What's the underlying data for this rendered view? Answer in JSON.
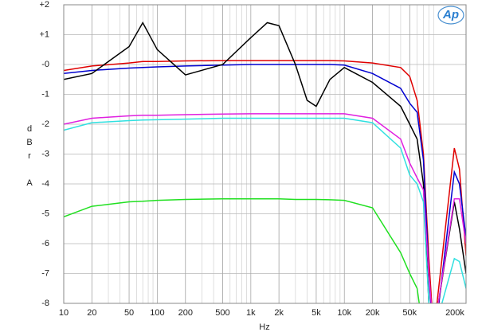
{
  "chart_data": {
    "type": "line",
    "xlabel": "Hz",
    "ylabel": "dBr A",
    "logo": "Ap",
    "xscale": "log",
    "grid": true,
    "x": [
      10,
      20,
      50,
      70,
      100,
      200,
      500,
      1000,
      1500,
      2000,
      3000,
      4000,
      5000,
      7000,
      10000,
      20000,
      40000,
      50000,
      60000,
      70000,
      80000,
      90000,
      150000,
      170000,
      200000
    ],
    "xlim": [
      10,
      200000
    ],
    "xticks": [
      10,
      20,
      50,
      100,
      200,
      500,
      {
        "value": 1000,
        "label": "1k"
      },
      {
        "value": 2000,
        "label": "2k"
      },
      {
        "value": 5000,
        "label": "5k"
      },
      {
        "value": 10000,
        "label": "10k"
      },
      {
        "value": 20000,
        "label": "20k"
      },
      {
        "value": 50000,
        "label": "50k"
      },
      {
        "value": 200000,
        "label": "200k"
      }
    ],
    "ylim": [
      -8,
      2
    ],
    "yticks": [
      {
        "value": 2,
        "label": "+2"
      },
      {
        "value": 1,
        "label": "+1"
      },
      {
        "value": 0,
        "label": "-0"
      },
      -1,
      -2,
      -3,
      -4,
      -5,
      -6,
      -7,
      -8
    ],
    "series": [
      {
        "color": "#e00000",
        "values": [
          -0.2,
          -0.05,
          0.05,
          0.1,
          0.1,
          0.12,
          0.13,
          0.13,
          0.13,
          0.13,
          0.13,
          0.13,
          0.13,
          0.13,
          0.12,
          0.05,
          -0.1,
          -0.4,
          -1.2,
          -3,
          -6.5,
          -9,
          -2.8,
          -3.5,
          -6.4
        ]
      },
      {
        "color": "#0000d0",
        "values": [
          -0.3,
          -0.2,
          -0.12,
          -0.1,
          -0.08,
          -0.05,
          -0.02,
          0,
          0,
          0,
          0,
          0,
          0,
          0,
          -0.02,
          -0.3,
          -0.8,
          -1.3,
          -1.6,
          -3.2,
          -7,
          -9.5,
          -3.6,
          -4,
          -5.8
        ]
      },
      {
        "color": "#000000",
        "values": [
          -0.5,
          -0.3,
          0.6,
          1.4,
          0.5,
          -0.35,
          0,
          0.9,
          1.4,
          1.3,
          0,
          -1.2,
          -1.4,
          -0.5,
          -0.1,
          -0.6,
          -1.4,
          -2,
          -2.5,
          -4,
          -8,
          -9,
          -4.6,
          -5.5,
          -7
        ]
      },
      {
        "color": "#e020e0",
        "values": [
          -2,
          -1.8,
          -1.72,
          -1.7,
          -1.7,
          -1.68,
          -1.66,
          -1.65,
          -1.65,
          -1.65,
          -1.65,
          -1.65,
          -1.65,
          -1.65,
          -1.65,
          -1.8,
          -2.5,
          -3.3,
          -3.8,
          -4.2,
          -7,
          -9,
          -4.5,
          -4.5,
          -6
        ]
      },
      {
        "color": "#30e0e0",
        "values": [
          -2.2,
          -1.95,
          -1.88,
          -1.86,
          -1.85,
          -1.83,
          -1.8,
          -1.8,
          -1.8,
          -1.8,
          -1.8,
          -1.8,
          -1.8,
          -1.8,
          -1.8,
          -1.95,
          -2.8,
          -3.7,
          -4,
          -4.6,
          -8,
          -9,
          -6.5,
          -6.6,
          -7.5
        ]
      },
      {
        "color": "#20e020",
        "values": [
          -5.1,
          -4.75,
          -4.6,
          -4.58,
          -4.55,
          -4.52,
          -4.5,
          -4.5,
          -4.5,
          -4.5,
          -4.52,
          -4.52,
          -4.52,
          -4.53,
          -4.55,
          -4.8,
          -6.3,
          -7,
          -7.5,
          -9,
          null,
          null,
          null,
          null,
          null
        ]
      }
    ]
  }
}
